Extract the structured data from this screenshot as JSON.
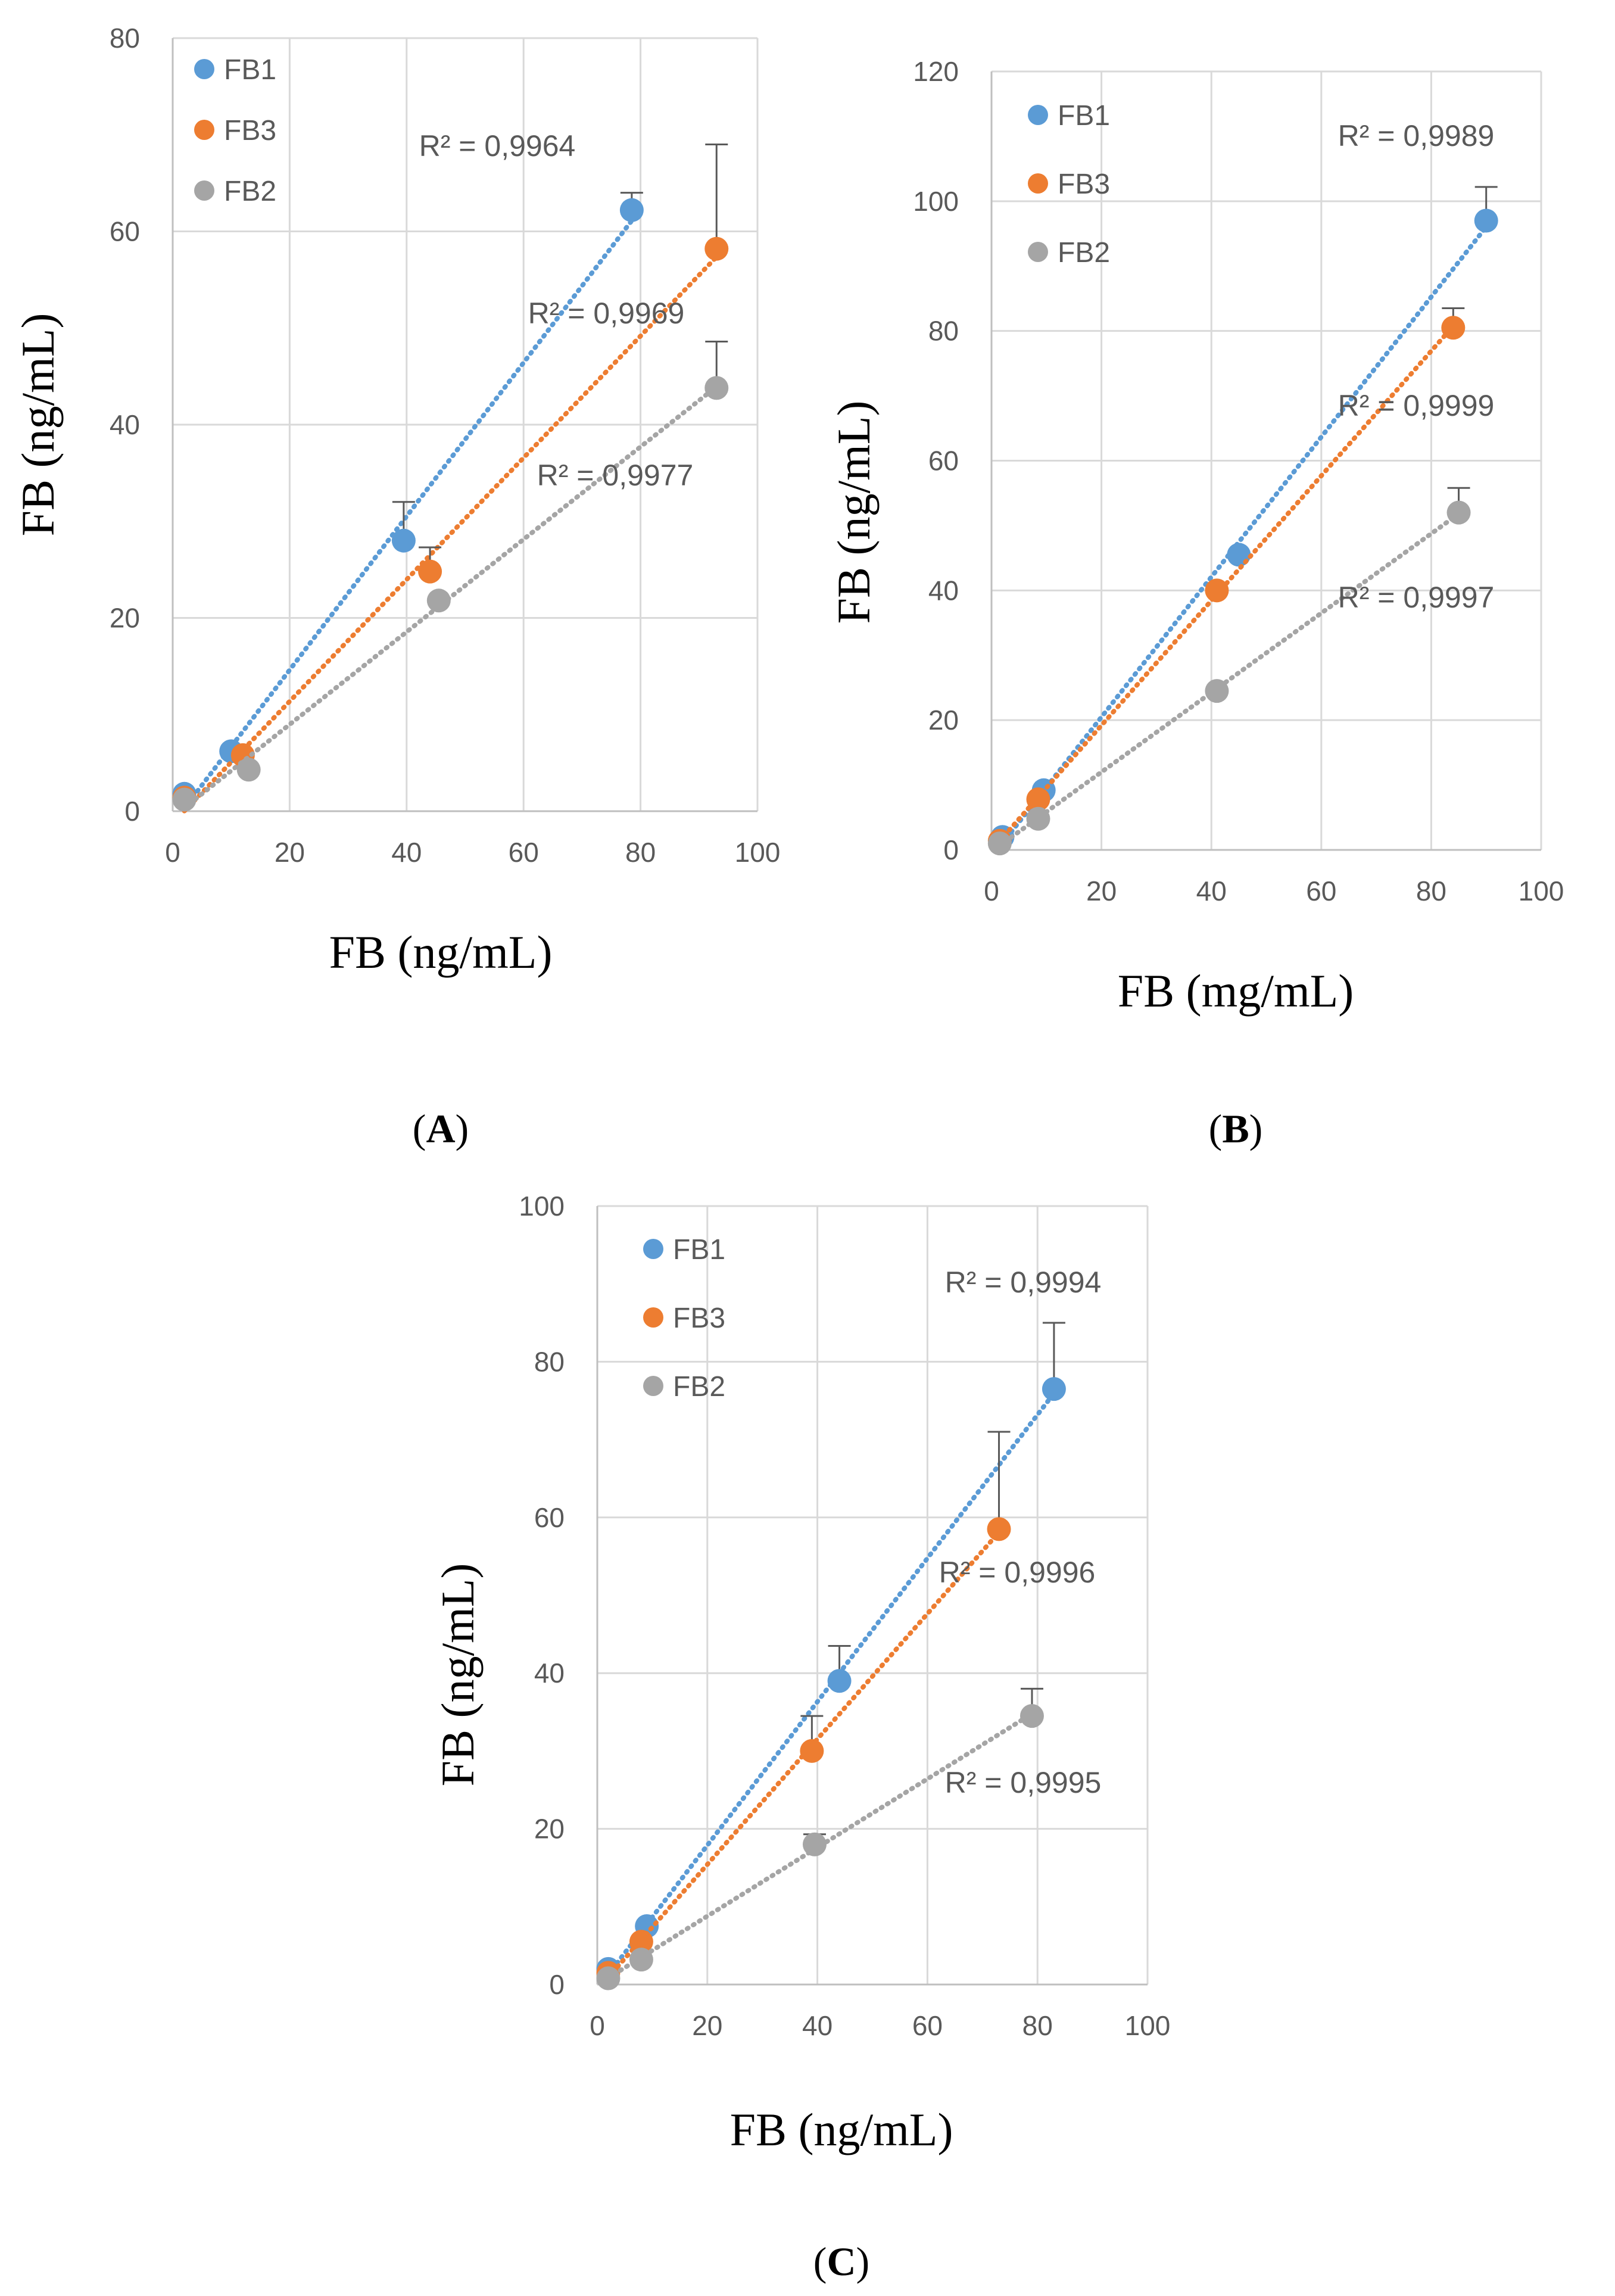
{
  "chart_data": [
    {
      "type": "scatter",
      "panel": "A",
      "xlabel": "FB (ng/mL)",
      "ylabel": "FB (ng/mL)",
      "xlim": [
        0,
        100
      ],
      "ylim": [
        0,
        80
      ],
      "xticks": [
        0,
        20,
        40,
        60,
        80,
        100
      ],
      "yticks": [
        0,
        20,
        40,
        60,
        80
      ],
      "grid": true,
      "legend": "top-left",
      "series": [
        {
          "name": "FB1",
          "color": "#5b9bd5",
          "x": [
            2,
            10,
            39.5,
            78.5
          ],
          "y": [
            1.8,
            6.2,
            28,
            62.2
          ],
          "err": [
            0,
            0,
            4,
            1.8
          ],
          "r2": "R² = 0,9964"
        },
        {
          "name": "FB3",
          "color": "#ed7d31",
          "x": [
            2,
            12,
            44,
            93
          ],
          "y": [
            1.4,
            5.8,
            24.8,
            58.2
          ],
          "err": [
            0,
            0,
            2.5,
            10.8
          ],
          "r2": "R² = 0,9969"
        },
        {
          "name": "FB2",
          "color": "#a5a5a5",
          "x": [
            2,
            13,
            45.5,
            93
          ],
          "y": [
            1.2,
            4.3,
            21.8,
            43.8
          ],
          "err": [
            0,
            0,
            0,
            4.8
          ],
          "r2": "R² = 0,9977"
        }
      ]
    },
    {
      "type": "scatter",
      "panel": "B",
      "xlabel": "FB (mg/mL)",
      "ylabel": "FB (ng/mL)",
      "xlim": [
        0,
        100
      ],
      "ylim": [
        0,
        120
      ],
      "xticks": [
        0,
        20,
        40,
        60,
        80,
        100
      ],
      "yticks": [
        0,
        20,
        40,
        60,
        80,
        100,
        120
      ],
      "grid": true,
      "legend": "top-left",
      "series": [
        {
          "name": "FB1",
          "color": "#5b9bd5",
          "x": [
            2,
            9.5,
            45,
            90
          ],
          "y": [
            2,
            9.2,
            45.5,
            97
          ],
          "err": [
            0,
            0,
            0,
            5.2
          ],
          "r2": "R² = 0,9989"
        },
        {
          "name": "FB3",
          "color": "#ed7d31",
          "x": [
            1.5,
            8.5,
            41,
            84
          ],
          "y": [
            1.4,
            7.8,
            40,
            80.5
          ],
          "err": [
            0,
            0,
            0,
            3
          ],
          "r2": "R² = 0,9999"
        },
        {
          "name": "FB2",
          "color": "#a5a5a5",
          "x": [
            1.5,
            8.5,
            41,
            85
          ],
          "y": [
            1,
            4.8,
            24.5,
            52
          ],
          "err": [
            0,
            0,
            0,
            3.8
          ],
          "r2": "R² = 0,9997"
        }
      ]
    },
    {
      "type": "scatter",
      "panel": "C",
      "xlabel": "FB (ng/mL)",
      "ylabel": "FB (ng/mL)",
      "xlim": [
        0,
        100
      ],
      "ylim": [
        0,
        100
      ],
      "xticks": [
        0,
        20,
        40,
        60,
        80,
        100
      ],
      "yticks": [
        0,
        20,
        40,
        60,
        80,
        100
      ],
      "grid": true,
      "legend": "top-left",
      "series": [
        {
          "name": "FB1",
          "color": "#5b9bd5",
          "x": [
            2,
            9,
            44,
            83
          ],
          "y": [
            2,
            7.5,
            39,
            76.5
          ],
          "err": [
            0,
            0,
            4.5,
            8.5
          ],
          "r2": "R² = 0,9994"
        },
        {
          "name": "FB3",
          "color": "#ed7d31",
          "x": [
            2,
            8,
            39,
            73
          ],
          "y": [
            1.5,
            5.5,
            30,
            58.5
          ],
          "err": [
            0,
            0,
            4.5,
            12.5
          ],
          "r2": "R² = 0,9996"
        },
        {
          "name": "FB2",
          "color": "#a5a5a5",
          "x": [
            2,
            8,
            39.5,
            79
          ],
          "y": [
            0.8,
            3.2,
            18,
            34.5
          ],
          "err": [
            0,
            0,
            1.3,
            3.5
          ],
          "r2": "R² = 0,9995"
        }
      ]
    }
  ]
}
